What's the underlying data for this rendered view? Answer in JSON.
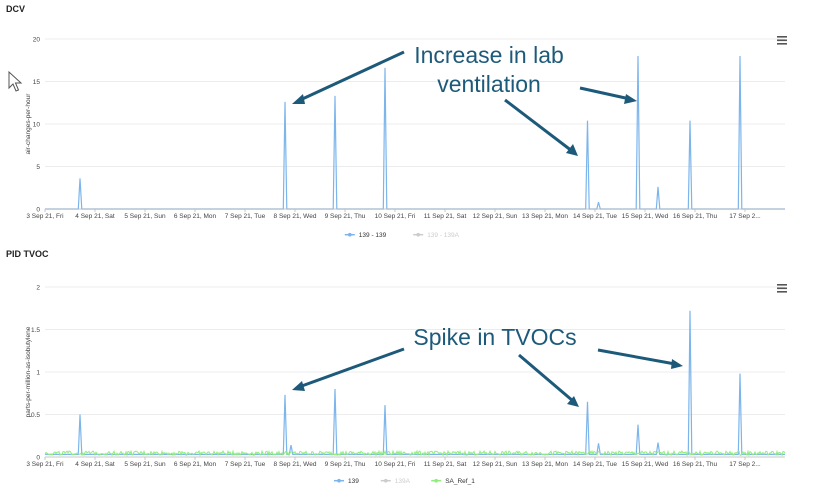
{
  "cursor_icon": "mouse-pointer-icon",
  "menu_icon": "hamburger-menu-icon",
  "charts": [
    {
      "type": "line",
      "title": "DCV",
      "ylabel": "air-changes-per-hour",
      "ylim": [
        0,
        20
      ],
      "yticks": [
        "0",
        "5",
        "10",
        "15",
        "20"
      ],
      "xlim": [
        0,
        14.8
      ],
      "xtick_labels": [
        "3 Sep 21, Fri",
        "4 Sep 21, Sat",
        "5 Sep 21, Sun",
        "6 Sep 21, Mon",
        "7 Sep 21, Tue",
        "8 Sep 21, Wed",
        "9 Sep 21, Thu",
        "10 Sep 21, Fri",
        "11 Sep 21, Sat",
        "12 Sep 21, Sun",
        "13 Sep 21, Mon",
        "14 Sep 21, Tue",
        "15 Sep 21, Wed",
        "16 Sep 21, Thu",
        "17 Sep 2..."
      ],
      "legend": [
        {
          "label": "139 - 139",
          "color": "#7cb5ec",
          "active": true
        },
        {
          "label": "139 - 139A",
          "color": "#cccccc",
          "active": false
        }
      ],
      "series": [
        {
          "name": "139 - 139",
          "color": "#7cb5ec",
          "spikes": [
            [
              0.7,
              3.6
            ],
            [
              4.8,
              12.6
            ],
            [
              5.8,
              13.3
            ],
            [
              6.8,
              16.6
            ],
            [
              10.85,
              10.4
            ],
            [
              11.07,
              0.8
            ],
            [
              11.86,
              18.0
            ],
            [
              12.26,
              2.6
            ],
            [
              12.9,
              10.4
            ],
            [
              13.9,
              18.0
            ]
          ],
          "baseline": 0
        }
      ],
      "annotation": {
        "text_line1": "Increase in lab",
        "text_line2": "ventilation"
      }
    },
    {
      "type": "line",
      "title": "PID TVOC",
      "ylabel": "parts-per-million-as-isobutylene",
      "ylim": [
        0,
        2
      ],
      "yticks": [
        "0",
        "0.5",
        "1",
        "1.5",
        "2"
      ],
      "xlim": [
        0,
        14.8
      ],
      "xtick_labels": [
        "3 Sep 21, Fri",
        "4 Sep 21, Sat",
        "5 Sep 21, Sun",
        "6 Sep 21, Mon",
        "7 Sep 21, Tue",
        "8 Sep 21, Wed",
        "9 Sep 21, Thu",
        "10 Sep 21, Fri",
        "11 Sep 21, Sat",
        "12 Sep 21, Sun",
        "13 Sep 21, Mon",
        "14 Sep 21, Tue",
        "15 Sep 21, Wed",
        "16 Sep 21, Thu",
        "17 Sep 2..."
      ],
      "legend": [
        {
          "label": "139",
          "color": "#7cb5ec",
          "active": true
        },
        {
          "label": "139A",
          "color": "#cccccc",
          "active": false
        },
        {
          "label": "SA_Ref_1",
          "color": "#90ed7d",
          "active": true
        }
      ],
      "series": [
        {
          "name": "139",
          "color": "#7cb5ec",
          "spikes": [
            [
              0.7,
              0.5
            ],
            [
              4.8,
              0.73
            ],
            [
              4.92,
              0.14
            ],
            [
              5.8,
              0.8
            ],
            [
              6.8,
              0.61
            ],
            [
              10.85,
              0.65
            ],
            [
              11.07,
              0.16
            ],
            [
              11.86,
              0.38
            ],
            [
              12.26,
              0.17
            ],
            [
              12.9,
              1.72
            ],
            [
              13.9,
              0.98
            ]
          ],
          "baseline": 0.03
        },
        {
          "name": "SA_Ref_1",
          "color": "#90ed7d",
          "noise": [
            0.02,
            0.07
          ]
        }
      ],
      "annotation": {
        "text_line1": "Spike in TVOCs"
      }
    }
  ]
}
